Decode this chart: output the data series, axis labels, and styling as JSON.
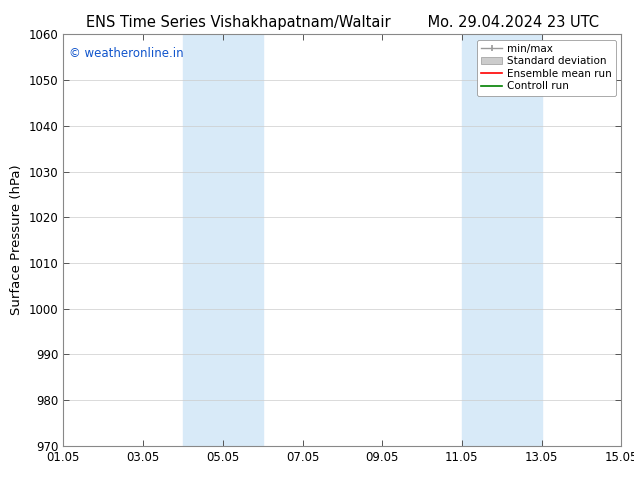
{
  "title_left": "ENS Time Series Vishakhapatnam/Waltair",
  "title_right": "Mo. 29.04.2024 23 UTC",
  "ylabel": "Surface Pressure (hPa)",
  "ylim": [
    970,
    1060
  ],
  "yticks": [
    970,
    980,
    990,
    1000,
    1010,
    1020,
    1030,
    1040,
    1050,
    1060
  ],
  "xlim_start": 0,
  "xlim_end": 14,
  "xtick_positions": [
    0,
    2,
    4,
    6,
    8,
    10,
    12,
    14
  ],
  "xtick_labels": [
    "01.05",
    "03.05",
    "05.05",
    "07.05",
    "09.05",
    "11.05",
    "13.05",
    "15.05"
  ],
  "shaded_regions": [
    {
      "x_start": 3.0,
      "x_end": 4.0
    },
    {
      "x_start": 4.0,
      "x_end": 5.0
    },
    {
      "x_start": 10.0,
      "x_end": 11.0
    },
    {
      "x_start": 11.0,
      "x_end": 12.0
    }
  ],
  "shaded_color": "#d8eaf8",
  "watermark_text": "© weatheronline.in",
  "watermark_color": "#1155cc",
  "bg_color": "#ffffff",
  "spine_color": "#888888",
  "legend_items": [
    {
      "label": "min/max",
      "color": "#aaaaaa",
      "style": "errorbar"
    },
    {
      "label": "Standard deviation",
      "color": "#cccccc",
      "style": "bar"
    },
    {
      "label": "Ensemble mean run",
      "color": "red",
      "style": "line"
    },
    {
      "label": "Controll run",
      "color": "green",
      "style": "line"
    }
  ],
  "title_fontsize": 10.5,
  "tick_fontsize": 8.5,
  "ylabel_fontsize": 9.5,
  "watermark_fontsize": 8.5,
  "legend_fontsize": 7.5
}
